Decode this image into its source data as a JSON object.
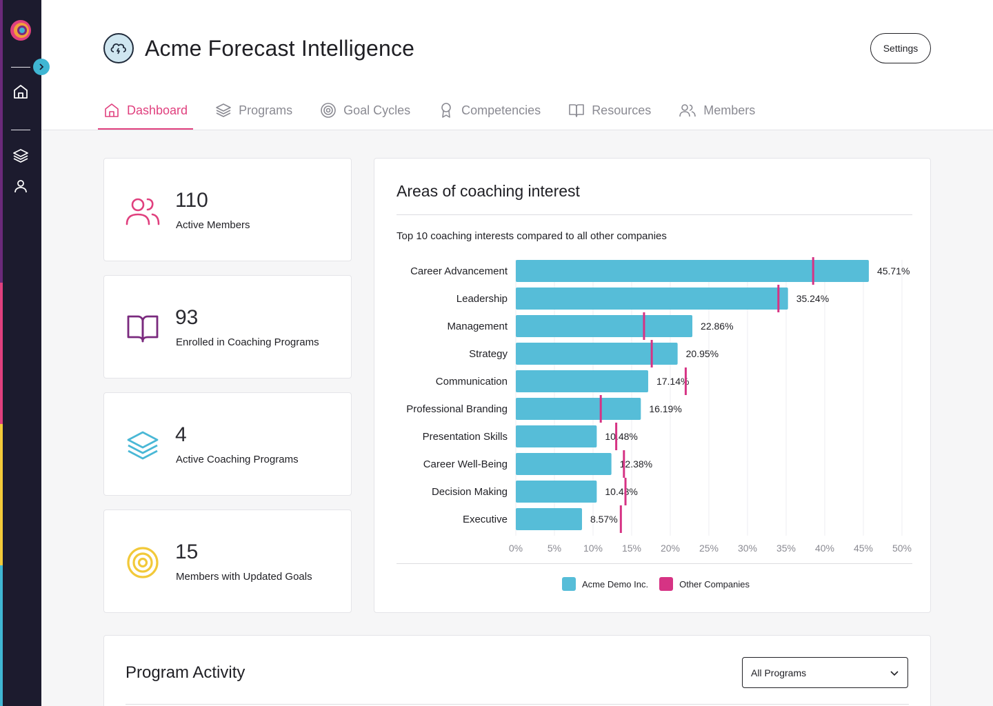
{
  "app": {
    "title": "Acme Forecast Intelligence",
    "settings_label": "Settings"
  },
  "tabs": [
    {
      "label": "Dashboard",
      "icon": "home-icon",
      "active": true
    },
    {
      "label": "Programs",
      "icon": "layers-icon"
    },
    {
      "label": "Goal Cycles",
      "icon": "target-icon"
    },
    {
      "label": "Competencies",
      "icon": "award-icon"
    },
    {
      "label": "Resources",
      "icon": "book-icon"
    },
    {
      "label": "Members",
      "icon": "users-icon"
    }
  ],
  "stats": [
    {
      "value": "110",
      "label": "Active Members",
      "icon": "users-icon",
      "color": "#e0407e"
    },
    {
      "value": "93",
      "label": "Enrolled in Coaching Programs",
      "icon": "book-icon",
      "color": "#7a2a7e"
    },
    {
      "value": "4",
      "label": "Active Coaching Programs",
      "icon": "layers-icon",
      "color": "#4ab8d6"
    },
    {
      "value": "15",
      "label": "Members with Updated Goals",
      "icon": "target-icon",
      "color": "#f2c93a"
    }
  ],
  "colors": {
    "accent": "#e0407e",
    "bar": "#56bdd8",
    "marker": "#d63384",
    "sidebar": "#1c1b2e"
  },
  "chart_data": {
    "type": "bar",
    "title": "Areas of coaching interest",
    "subtitle": "Top 10 coaching interests compared to all other companies",
    "orientation": "horizontal",
    "categories": [
      "Career Advancement",
      "Leadership",
      "Management",
      "Strategy",
      "Communication",
      "Professional Branding",
      "Presentation Skills",
      "Career Well-Being",
      "Decision Making",
      "Executive"
    ],
    "series": [
      {
        "name": "Acme Demo Inc.",
        "values": [
          45.71,
          35.24,
          22.86,
          20.95,
          17.14,
          16.19,
          10.48,
          12.38,
          10.48,
          8.57
        ],
        "color": "#56bdd8"
      },
      {
        "name": "Other Companies",
        "values": [
          38.5,
          34.0,
          16.6,
          17.6,
          22.0,
          11.0,
          13.0,
          14.0,
          14.2,
          13.6
        ],
        "color": "#d63384"
      }
    ],
    "value_labels": [
      "45.71%",
      "35.24%",
      "22.86%",
      "20.95%",
      "17.14%",
      "16.19%",
      "10.48%",
      "12.38%",
      "10.48%",
      "8.57%"
    ],
    "xlim": [
      0,
      50
    ],
    "x_ticks": [
      "0%",
      "5%",
      "10%",
      "15%",
      "20%",
      "25%",
      "30%",
      "35%",
      "40%",
      "45%",
      "50%"
    ],
    "legend_position": "bottom-center"
  },
  "activity": {
    "title": "Program Activity",
    "filter_value": "All Programs"
  }
}
